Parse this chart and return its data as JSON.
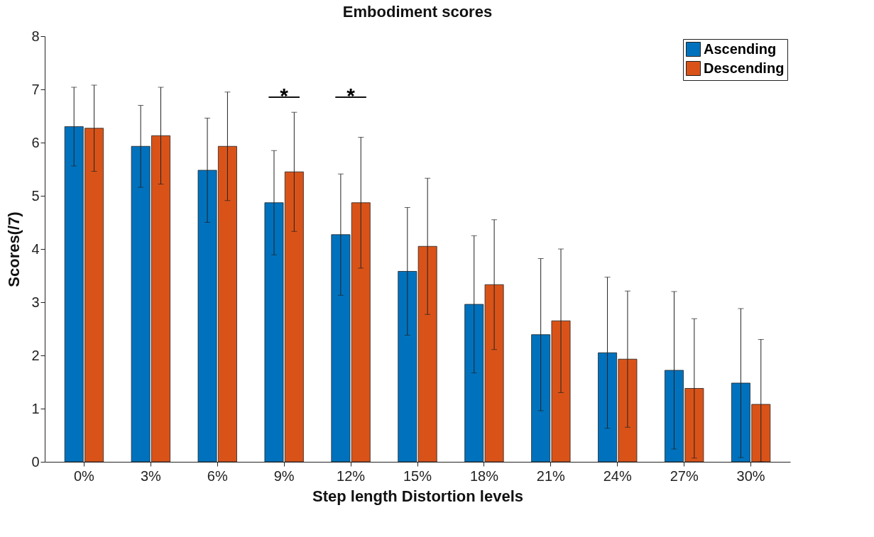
{
  "chart_data": {
    "type": "bar",
    "title": "Embodiment scores",
    "xlabel": "Step length Distortion levels",
    "ylabel": "Scores(/7)",
    "categories": [
      "0%",
      "3%",
      "6%",
      "9%",
      "12%",
      "15%",
      "18%",
      "21%",
      "24%",
      "27%",
      "30%"
    ],
    "series": [
      {
        "name": "Ascending",
        "color": "#0072bd",
        "values": [
          6.3,
          5.93,
          5.48,
          4.87,
          4.27,
          3.58,
          2.96,
          2.39,
          2.05,
          1.72,
          1.48
        ],
        "errors": [
          0.74,
          0.77,
          0.98,
          0.98,
          1.14,
          1.2,
          1.29,
          1.43,
          1.42,
          1.48,
          1.4
        ]
      },
      {
        "name": "Descending",
        "color": "#d95319",
        "values": [
          6.27,
          6.13,
          5.93,
          5.45,
          4.87,
          4.05,
          3.33,
          2.65,
          1.93,
          1.38,
          1.08
        ],
        "errors": [
          0.81,
          0.91,
          1.02,
          1.12,
          1.23,
          1.28,
          1.22,
          1.35,
          1.28,
          1.31,
          [
            0,
            2.3
          ]
        ]
      }
    ],
    "ylim": [
      0,
      8
    ],
    "yticks": [
      0,
      1,
      2,
      3,
      4,
      5,
      6,
      7,
      8
    ],
    "annotations": [
      "*",
      "*"
    ],
    "legend": "top right",
    "grid": false
  }
}
